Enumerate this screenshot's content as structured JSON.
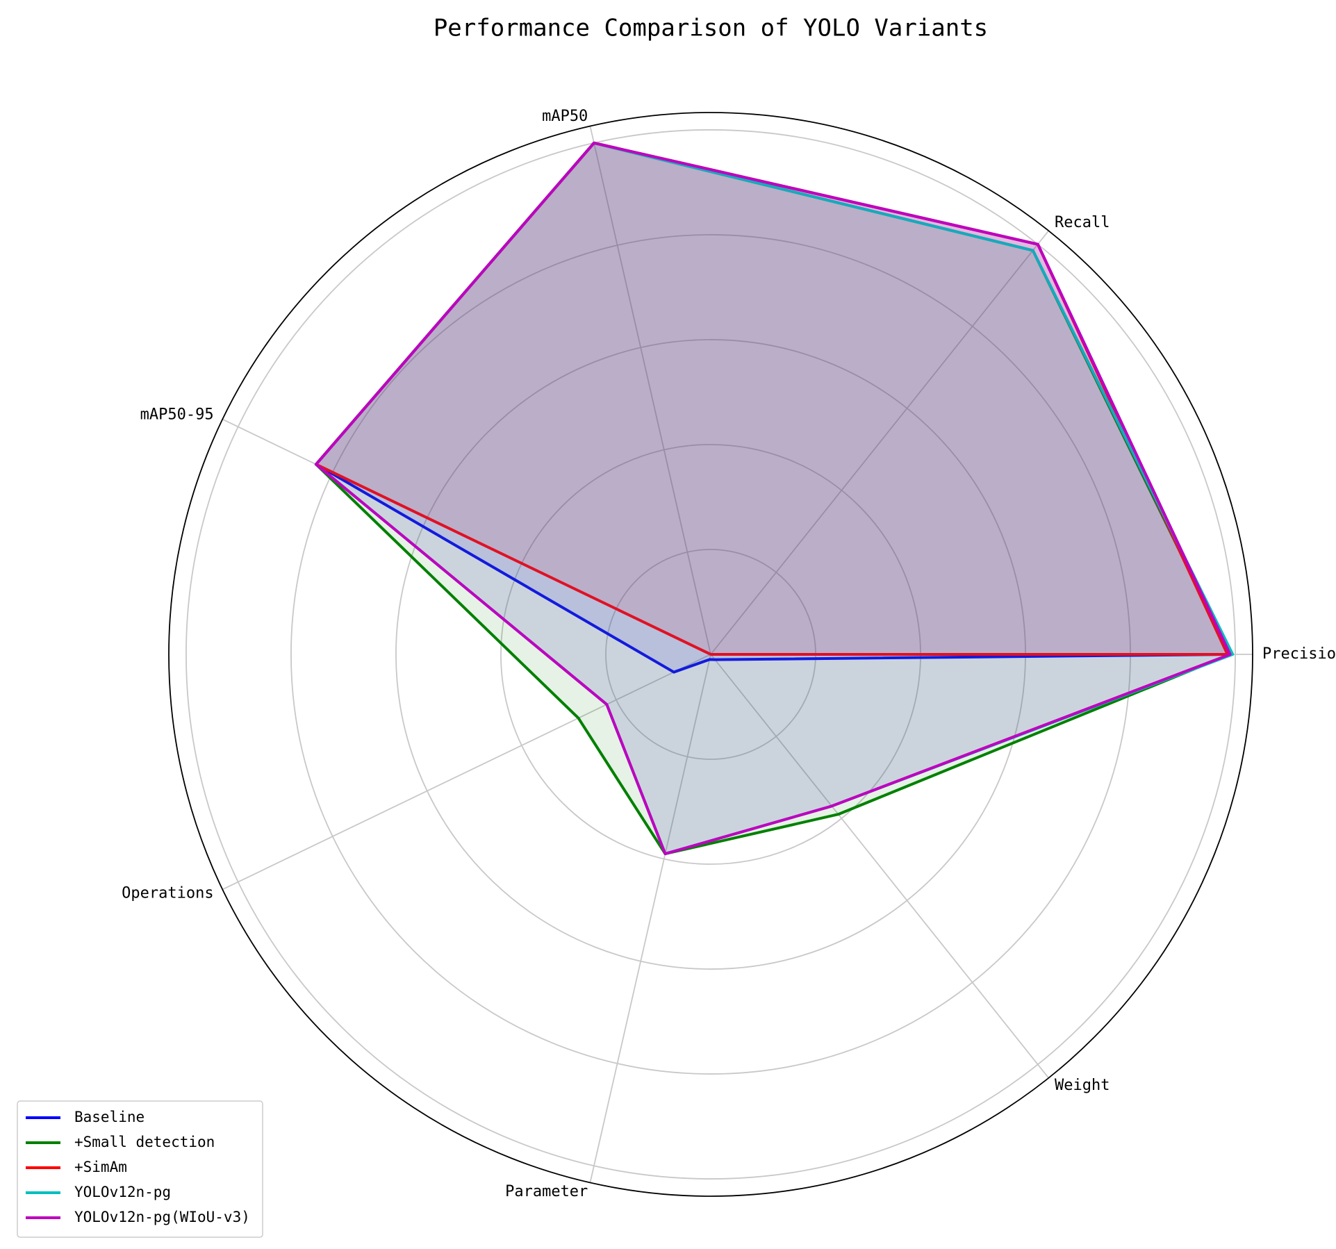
{
  "chart_data": {
    "type": "radar",
    "title": "Performance Comparison of YOLO Variants",
    "categories": [
      "Precision",
      "Recall",
      "mAP50",
      "mAP50-95",
      "Operations",
      "Parameter",
      "Weight"
    ],
    "ylim": [
      0,
      1.033
    ],
    "yticks": [
      0.2,
      0.4,
      0.6,
      0.8,
      1.0
    ],
    "grid": true,
    "legend": "lower left",
    "series": [
      {
        "name": "Baseline",
        "color": "#0000ff",
        "values": [
          0.99,
          1.0,
          1.0,
          0.835,
          0.078,
          0.01,
          0.013
        ]
      },
      {
        "name": "+Small detection",
        "color": "#008000",
        "values": [
          0.99,
          0.985,
          1.0,
          0.835,
          0.28,
          0.39,
          0.39
        ]
      },
      {
        "name": "+SimAm",
        "color": "#ff0000",
        "values": [
          0.985,
          1.0,
          1.0,
          0.835,
          0,
          0,
          0
        ]
      },
      {
        "name": "YOLOv12n-pg",
        "color": "#00bfbf",
        "values": [
          0.995,
          0.985,
          1.0,
          0.835,
          0.22,
          0.39,
          0.37
        ]
      },
      {
        "name": "YOLOv12n-pg(WIoU-v3)",
        "color": "#bf00bf",
        "values": [
          0.99,
          1.0,
          1.0,
          0.835,
          0.22,
          0.39,
          0.37
        ]
      }
    ]
  }
}
